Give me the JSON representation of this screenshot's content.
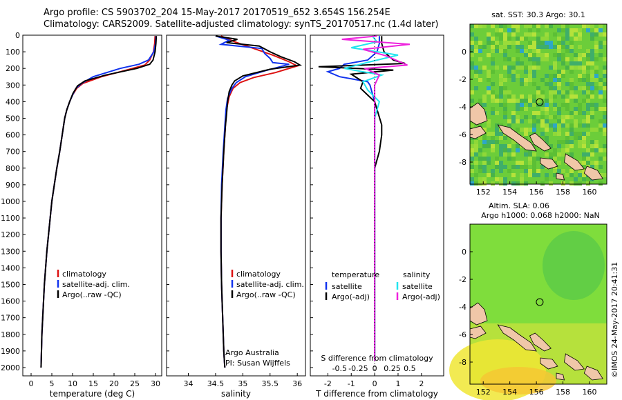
{
  "header": {
    "line1": "Argo profile: CS 5903702_204 15-May-2017 20170519_652 3.654S 156.254E",
    "line2": "Climatology: CARS2009. Satellite-adjusted climatology: synTS_20170517.nc (1.4d later)"
  },
  "footer_credit": "©IMOS 24-May-2017 20:41:31",
  "colors": {
    "climatology": "#dd1111",
    "satellite": "#1133ee",
    "argo": "#000000",
    "salinity_satellite": "#22e5ee",
    "salinity_argo": "#ee22dd",
    "land": "#f0c7a8",
    "sst_field": "#6ccd3a",
    "sla_field": "#7fdd3c"
  },
  "chart_data": [
    {
      "type": "line",
      "id": "temperature",
      "xlabel": "temperature (deg C)",
      "ylabel": "",
      "xlim": [
        -2,
        31.5
      ],
      "ylim": [
        2050,
        0
      ],
      "x_ticks": [
        0,
        5,
        10,
        15,
        20,
        25,
        30
      ],
      "y_ticks": [
        0,
        100,
        200,
        300,
        400,
        500,
        600,
        700,
        800,
        900,
        1000,
        1100,
        1200,
        1300,
        1400,
        1500,
        1600,
        1700,
        1800,
        1900,
        2000
      ],
      "legend": [
        "climatology",
        "satellite-adj. clim.",
        "Argo(..raw -QC)"
      ],
      "series": [
        {
          "name": "climatology",
          "color_key": "climatology",
          "points": [
            [
              29.9,
              5
            ],
            [
              29.8,
              50
            ],
            [
              29.5,
              100
            ],
            [
              28.6,
              150
            ],
            [
              27.4,
              180
            ],
            [
              23,
              210
            ],
            [
              17,
              250
            ],
            [
              12.5,
              290
            ],
            [
              11,
              320
            ],
            [
              10,
              360
            ],
            [
              9.3,
              400
            ],
            [
              8.6,
              450
            ],
            [
              8.1,
              500
            ],
            [
              7.5,
              600
            ],
            [
              6.9,
              700
            ],
            [
              6.2,
              800
            ],
            [
              5.6,
              900
            ],
            [
              5.0,
              1000
            ],
            [
              4.6,
              1100
            ],
            [
              4.2,
              1200
            ],
            [
              3.8,
              1300
            ],
            [
              3.5,
              1400
            ],
            [
              3.2,
              1500
            ],
            [
              3.0,
              1600
            ],
            [
              2.8,
              1700
            ],
            [
              2.6,
              1800
            ],
            [
              2.5,
              1900
            ],
            [
              2.4,
              2000
            ]
          ]
        },
        {
          "name": "satellite-adj. clim.",
          "color_key": "satellite",
          "points": [
            [
              30.1,
              5
            ],
            [
              30,
              50
            ],
            [
              29.6,
              100
            ],
            [
              28.3,
              150
            ],
            [
              26,
              175
            ],
            [
              21.5,
              200
            ],
            [
              15,
              250
            ],
            [
              12.2,
              290
            ],
            [
              10.8,
              320
            ],
            [
              10,
              360
            ],
            [
              9.3,
              400
            ],
            [
              8.6,
              450
            ],
            [
              8.1,
              500
            ],
            [
              7.5,
              600
            ],
            [
              6.9,
              700
            ],
            [
              6.2,
              800
            ],
            [
              5.6,
              900
            ],
            [
              5.0,
              1000
            ],
            [
              4.6,
              1100
            ],
            [
              4.2,
              1200
            ],
            [
              3.8,
              1300
            ],
            [
              3.5,
              1400
            ],
            [
              3.2,
              1500
            ],
            [
              3.0,
              1600
            ],
            [
              2.8,
              1700
            ],
            [
              2.6,
              1800
            ],
            [
              2.5,
              1900
            ],
            [
              2.4,
              2000
            ]
          ]
        },
        {
          "name": "Argo(..raw -QC)",
          "color_key": "argo",
          "points": [
            [
              30.2,
              5
            ],
            [
              30.1,
              50
            ],
            [
              29.9,
              100
            ],
            [
              29.4,
              150
            ],
            [
              28.6,
              175
            ],
            [
              25.5,
              200
            ],
            [
              18,
              240
            ],
            [
              13,
              275
            ],
            [
              11.2,
              305
            ],
            [
              10.1,
              350
            ],
            [
              9.3,
              400
            ],
            [
              8.6,
              450
            ],
            [
              8.1,
              500
            ],
            [
              7.5,
              600
            ],
            [
              6.9,
              700
            ],
            [
              6.2,
              800
            ],
            [
              5.6,
              900
            ],
            [
              5.0,
              1000
            ],
            [
              4.6,
              1100
            ],
            [
              4.2,
              1200
            ],
            [
              3.8,
              1300
            ],
            [
              3.5,
              1400
            ],
            [
              3.2,
              1500
            ],
            [
              3.0,
              1600
            ],
            [
              2.8,
              1700
            ],
            [
              2.6,
              1800
            ],
            [
              2.5,
              1900
            ],
            [
              2.4,
              2000
            ]
          ]
        }
      ]
    },
    {
      "type": "line",
      "id": "salinity",
      "xlabel": "salinity",
      "xlim": [
        33.6,
        36.15
      ],
      "ylim": [
        2050,
        0
      ],
      "x_ticks": [
        34,
        34.5,
        35,
        35.5,
        36
      ],
      "legend": [
        "climatology",
        "satellite-adj. clim.",
        "Argo(..raw -QC)"
      ],
      "annotation": [
        "Argo Australia",
        "PI: Susan Wijffels"
      ],
      "series": [
        {
          "name": "climatology",
          "color_key": "climatology",
          "points": [
            [
              34.6,
              5
            ],
            [
              34.85,
              40
            ],
            [
              35.2,
              80
            ],
            [
              35.55,
              120
            ],
            [
              35.85,
              160
            ],
            [
              36.0,
              185
            ],
            [
              35.6,
              225
            ],
            [
              35.2,
              255
            ],
            [
              34.95,
              285
            ],
            [
              34.82,
              320
            ],
            [
              34.75,
              370
            ],
            [
              34.7,
              450
            ],
            [
              34.68,
              550
            ],
            [
              34.65,
              700
            ],
            [
              34.62,
              900
            ],
            [
              34.6,
              1100
            ],
            [
              34.6,
              1300
            ],
            [
              34.61,
              1500
            ],
            [
              34.63,
              1700
            ],
            [
              34.65,
              1900
            ],
            [
              34.67,
              2000
            ]
          ]
        },
        {
          "name": "satellite-adj. clim.",
          "color_key": "satellite",
          "points": [
            [
              34.5,
              5
            ],
            [
              34.75,
              30
            ],
            [
              34.6,
              55
            ],
            [
              35.35,
              80
            ],
            [
              35.4,
              110
            ],
            [
              35.5,
              140
            ],
            [
              35.55,
              165
            ],
            [
              35.85,
              175
            ],
            [
              35.4,
              215
            ],
            [
              35.05,
              250
            ],
            [
              34.88,
              285
            ],
            [
              34.8,
              320
            ],
            [
              34.72,
              380
            ],
            [
              34.69,
              450
            ],
            [
              34.67,
              550
            ],
            [
              34.64,
              700
            ],
            [
              34.61,
              900
            ],
            [
              34.6,
              1100
            ],
            [
              34.6,
              1300
            ],
            [
              34.61,
              1500
            ],
            [
              34.63,
              1700
            ],
            [
              34.65,
              1900
            ],
            [
              34.67,
              2000
            ]
          ]
        },
        {
          "name": "Argo(..raw -QC)",
          "color_key": "argo",
          "points": [
            [
              34.5,
              5
            ],
            [
              34.9,
              25
            ],
            [
              34.7,
              45
            ],
            [
              35.3,
              65
            ],
            [
              35.5,
              100
            ],
            [
              35.7,
              130
            ],
            [
              35.95,
              160
            ],
            [
              36.05,
              180
            ],
            [
              35.5,
              205
            ],
            [
              35.0,
              245
            ],
            [
              34.85,
              275
            ],
            [
              34.8,
              300
            ],
            [
              34.75,
              340
            ],
            [
              34.72,
              400
            ],
            [
              34.7,
              480
            ],
            [
              34.68,
              550
            ],
            [
              34.65,
              700
            ],
            [
              34.62,
              900
            ],
            [
              34.6,
              1100
            ],
            [
              34.6,
              1300
            ],
            [
              34.61,
              1500
            ],
            [
              34.63,
              1700
            ],
            [
              34.65,
              1900
            ],
            [
              34.67,
              2000
            ]
          ]
        }
      ]
    },
    {
      "type": "line",
      "id": "differences",
      "xlabel_top": "S difference from climatology",
      "xlabel": "T difference from climatology",
      "xlim": [
        -2.75,
        2.95
      ],
      "ylim": [
        2050,
        0
      ],
      "x_ticks_T": [
        -2,
        -1,
        0,
        1,
        2
      ],
      "x_ticks_S": [
        "-0.5",
        "-0.25",
        "0",
        "0.25",
        "0.5"
      ],
      "legend_temperature_title": "temperature",
      "legend_salinity_title": "salinity",
      "legend_labels": {
        "satellite": "satellite",
        "argo": "Argo(-adj)"
      },
      "series": [
        {
          "name": "T satellite",
          "color_key": "satellite",
          "points": [
            [
              0.2,
              5
            ],
            [
              0.2,
              50
            ],
            [
              0.1,
              100
            ],
            [
              -0.3,
              150
            ],
            [
              -1.3,
              175
            ],
            [
              -1.5,
              200
            ],
            [
              -2,
              220
            ],
            [
              -1.5,
              250
            ],
            [
              -0.3,
              280
            ],
            [
              -0.2,
              300
            ],
            [
              0,
              400
            ],
            [
              0,
              600
            ],
            [
              0,
              800
            ],
            [
              0,
              1000
            ],
            [
              0,
              1400
            ],
            [
              0,
              1800
            ],
            [
              0,
              1960
            ]
          ]
        },
        {
          "name": "T Argo(-adj)",
          "color_key": "argo",
          "points": [
            [
              0.3,
              5
            ],
            [
              0.3,
              50
            ],
            [
              0.4,
              100
            ],
            [
              0.8,
              150
            ],
            [
              1.3,
              170
            ],
            [
              -0.5,
              180
            ],
            [
              -2.4,
              190
            ],
            [
              0.8,
              210
            ],
            [
              -1,
              235
            ],
            [
              -0.5,
              280
            ],
            [
              -0.6,
              320
            ],
            [
              0,
              400
            ],
            [
              0.3,
              540
            ],
            [
              0.3,
              600
            ],
            [
              0.2,
              700
            ],
            [
              0,
              800
            ],
            [
              0,
              1000
            ],
            [
              0,
              1400
            ],
            [
              0,
              1800
            ],
            [
              0,
              1960
            ]
          ]
        },
        {
          "name": "S satellite",
          "color_key": "salinity_satellite",
          "points": [
            [
              -0.1,
              5
            ],
            [
              0.1,
              40
            ],
            [
              -1,
              75
            ],
            [
              1,
              120
            ],
            [
              -0.2,
              160
            ],
            [
              -1.3,
              200
            ],
            [
              0.3,
              240
            ],
            [
              -0.5,
              280
            ],
            [
              -0.3,
              330
            ],
            [
              0.2,
              400
            ],
            [
              0,
              500
            ],
            [
              0,
              700
            ],
            [
              0,
              900
            ],
            [
              0,
              1100
            ],
            [
              0,
              1400
            ],
            [
              0,
              1700
            ],
            [
              0,
              1960
            ]
          ]
        },
        {
          "name": "S Argo(-adj)",
          "color_key": "salinity_argo",
          "points": [
            [
              0.1,
              5
            ],
            [
              -1.4,
              25
            ],
            [
              1.5,
              55
            ],
            [
              -0.5,
              85
            ],
            [
              0.5,
              125
            ],
            [
              1.4,
              180
            ],
            [
              -0.4,
              200
            ],
            [
              0.2,
              240
            ],
            [
              0,
              300
            ],
            [
              0,
              400
            ],
            [
              0,
              600
            ],
            [
              0,
              900
            ],
            [
              0,
              1200
            ],
            [
              0,
              1500
            ],
            [
              0,
              1800
            ],
            [
              0,
              1960
            ]
          ]
        }
      ]
    },
    {
      "type": "heatmap",
      "id": "sst_map",
      "title": "sat. SST: 30.3 Argo: 30.1",
      "xlim": [
        151,
        161.3
      ],
      "ylim": [
        -9.6,
        2
      ],
      "x_ticks": [
        152,
        154,
        156,
        158,
        160
      ],
      "y_ticks": [
        0,
        -2,
        -4,
        -6,
        -8
      ],
      "argo_position": [
        156.25,
        -3.65
      ]
    },
    {
      "type": "heatmap",
      "id": "sla_map",
      "title_lines": [
        "Altim. SLA: 0.06",
        "Argo h1000: 0.068 h2000: NaN"
      ],
      "xlim": [
        151,
        161.3
      ],
      "ylim": [
        -9.6,
        2
      ],
      "x_ticks": [
        152,
        154,
        156,
        158,
        160
      ],
      "y_ticks": [
        0,
        -2,
        -4,
        -6,
        -8
      ],
      "argo_position": [
        156.25,
        -3.65
      ]
    }
  ]
}
